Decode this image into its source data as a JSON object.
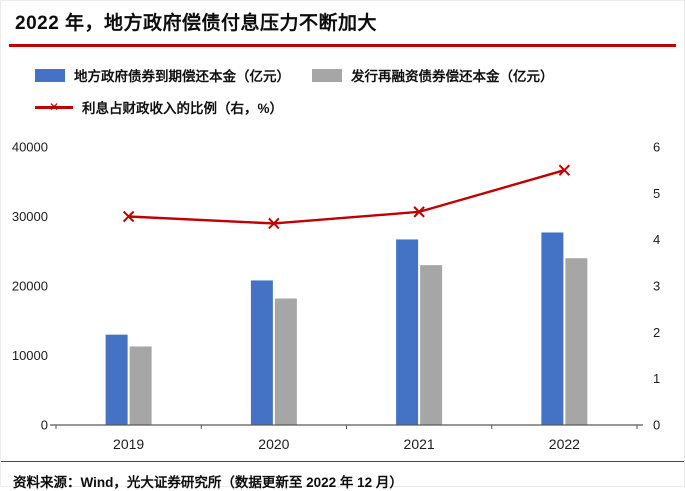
{
  "header": {
    "title": "2022 年，地方政府偿债付息压力不断加大"
  },
  "legend": [
    {
      "type": "bar",
      "color": "#4472C4",
      "label": "地方政府债券到期偿还本金（亿元）"
    },
    {
      "type": "bar",
      "color": "#A6A6A6",
      "label": "发行再融资债券偿还本金（亿元）"
    },
    {
      "type": "line",
      "color": "#C00000",
      "label": "利息占财政收入的比例（右，%）"
    }
  ],
  "chart_data": {
    "type": "bar",
    "subtype": "grouped-bars-with-line",
    "categories": [
      "2019",
      "2020",
      "2021",
      "2022"
    ],
    "series": [
      {
        "name": "地方政府债券到期偿还本金（亿元）",
        "type": "bar",
        "axis": "left",
        "color": "#4472C4",
        "values": [
          13000,
          20800,
          26700,
          27700
        ]
      },
      {
        "name": "发行再融资债券偿还本金（亿元）",
        "type": "bar",
        "axis": "left",
        "color": "#A6A6A6",
        "values": [
          11300,
          18200,
          23000,
          24000
        ]
      },
      {
        "name": "利息占财政收入的比例（右，%）",
        "type": "line",
        "axis": "right",
        "color": "#C00000",
        "marker": "x",
        "values": [
          4.5,
          4.35,
          4.6,
          5.5
        ]
      }
    ],
    "left_axis": {
      "min": 0,
      "max": 40000,
      "ticks": [
        0,
        10000,
        20000,
        30000,
        40000
      ]
    },
    "right_axis": {
      "min": 0,
      "max": 6,
      "ticks": [
        0,
        1,
        2,
        3,
        4,
        5,
        6
      ]
    },
    "grid": false,
    "legend_position": "top",
    "title": "2022 年，地方政府偿债付息压力不断加大"
  },
  "footer": {
    "source": "资料来源：Wind，光大证券研究所（数据更新至 2022 年 12 月）"
  },
  "colors": {
    "accent_red": "#C00000",
    "bar_blue": "#4472C4",
    "bar_gray": "#A6A6A6",
    "axis_line": "#595959"
  }
}
